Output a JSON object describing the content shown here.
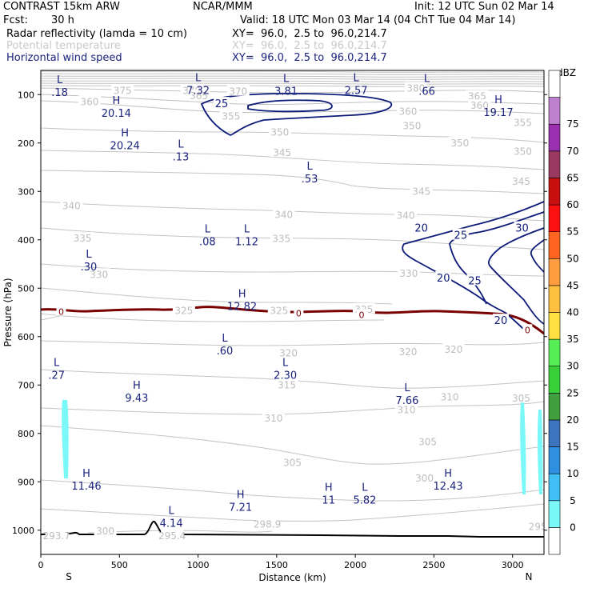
{
  "header": {
    "model": "CONTRAST 15km ARW",
    "org": "NCAR/MMM",
    "init": "Init: 12 UTC Sun 02 Mar 14",
    "fcst_label": "Fcst:",
    "fcst_value": "30 h",
    "valid": "Valid: 18 UTC Mon 03 Mar 14 (04 ChT Tue 04 Mar 14)",
    "fields": [
      {
        "name": "Radar reflectivity (lamda = 10 cm)",
        "xy": "XY=  96.0,  2.5 to  96.0,214.7",
        "color": "#000000"
      },
      {
        "name": "Potential temperature",
        "xy": "XY=  96.0,  2.5 to  96.0,214.7",
        "color": "#c8c8c8"
      },
      {
        "name": "Horizontal wind speed",
        "xy": "XY=  96.0,  2.5 to  96.0,214.7",
        "color": "#1a237e"
      }
    ]
  },
  "chart_data": {
    "type": "contour-cross-section",
    "xlabel": "Distance (km)",
    "ylabel": "Pressure (hPa)",
    "xlim": [
      0,
      3200
    ],
    "ylim": [
      1050,
      50
    ],
    "x_ticks": [
      0,
      500,
      1000,
      1500,
      2000,
      2500,
      3000
    ],
    "y_ticks": [
      100,
      200,
      300,
      400,
      500,
      600,
      700,
      800,
      900,
      1000
    ],
    "x_end_labels": {
      "left": "S",
      "right": "N"
    },
    "theta_labels": [
      {
        "t": "375",
        "x": 520,
        "p": 92
      },
      {
        "t": "370",
        "x": 960,
        "p": 92
      },
      {
        "t": "365",
        "x": 1005,
        "p": 103
      },
      {
        "t": "370",
        "x": 1255,
        "p": 94
      },
      {
        "t": "380",
        "x": 2385,
        "p": 87
      },
      {
        "t": "360",
        "x": 310,
        "p": 115
      },
      {
        "t": "365",
        "x": 2775,
        "p": 104
      },
      {
        "t": "360",
        "x": 2790,
        "p": 123
      },
      {
        "t": "355",
        "x": 1210,
        "p": 145
      },
      {
        "t": "360",
        "x": 2335,
        "p": 135
      },
      {
        "t": "355",
        "x": 3065,
        "p": 158
      },
      {
        "t": "350",
        "x": 1520,
        "p": 178
      },
      {
        "t": "350",
        "x": 2360,
        "p": 165
      },
      {
        "t": "350",
        "x": 2665,
        "p": 200
      },
      {
        "t": "350",
        "x": 3065,
        "p": 218
      },
      {
        "t": "345",
        "x": 1535,
        "p": 220
      },
      {
        "t": "345",
        "x": 3055,
        "p": 280
      },
      {
        "t": "345",
        "x": 2420,
        "p": 300
      },
      {
        "t": "340",
        "x": 195,
        "p": 330
      },
      {
        "t": "340",
        "x": 1545,
        "p": 348
      },
      {
        "t": "340",
        "x": 2320,
        "p": 350
      },
      {
        "t": "335",
        "x": 265,
        "p": 397
      },
      {
        "t": "335",
        "x": 1530,
        "p": 398
      },
      {
        "t": "330",
        "x": 370,
        "p": 472
      },
      {
        "t": "330",
        "x": 2340,
        "p": 470
      },
      {
        "t": "325",
        "x": 910,
        "p": 547
      },
      {
        "t": "325",
        "x": 1515,
        "p": 547
      },
      {
        "t": "325",
        "x": 2055,
        "p": 544
      },
      {
        "t": "320",
        "x": 1575,
        "p": 634
      },
      {
        "t": "320",
        "x": 2335,
        "p": 632
      },
      {
        "t": "320",
        "x": 2625,
        "p": 627
      },
      {
        "t": "315",
        "x": 1565,
        "p": 700
      },
      {
        "t": "310",
        "x": 1480,
        "p": 769
      },
      {
        "t": "310",
        "x": 2325,
        "p": 752
      },
      {
        "t": "310",
        "x": 2600,
        "p": 725
      },
      {
        "t": "305",
        "x": 2460,
        "p": 818
      },
      {
        "t": "305",
        "x": 1600,
        "p": 861
      },
      {
        "t": "305",
        "x": 3055,
        "p": 728
      },
      {
        "t": "300",
        "x": 410,
        "p": 1002
      },
      {
        "t": "300",
        "x": 2440,
        "p": 893
      },
      {
        "t": "298.9",
        "x": 1440,
        "p": 988
      },
      {
        "t": "295.4",
        "x": 835,
        "p": 1012
      },
      {
        "t": "293.7",
        "x": 100,
        "p": 1012
      },
      {
        "t": "295",
        "x": 3160,
        "p": 993
      }
    ],
    "wind_labels": [
      {
        "t": "25",
        "x": 1150,
        "p": 118
      },
      {
        "t": "20",
        "x": 2420,
        "p": 375
      },
      {
        "t": "25",
        "x": 2670,
        "p": 390
      },
      {
        "t": "30",
        "x": 3060,
        "p": 375
      },
      {
        "t": "20",
        "x": 2560,
        "p": 478
      },
      {
        "t": "25",
        "x": 2760,
        "p": 484
      },
      {
        "t": "20",
        "x": 2925,
        "p": 566
      }
    ],
    "freezing_level_labels": [
      {
        "t": "0",
        "x": 130,
        "p": 548
      },
      {
        "t": "0",
        "x": 1640,
        "p": 552
      },
      {
        "t": "0",
        "x": 2040,
        "p": 555
      },
      {
        "t": "0",
        "x": 3095,
        "p": 586
      }
    ],
    "hl_markers": [
      {
        "t": "L",
        "v": ".18",
        "x": 120,
        "p": 80,
        "c": "wind"
      },
      {
        "t": "L",
        "v": "7.32",
        "x": 1000,
        "p": 76,
        "c": "wind"
      },
      {
        "t": "L",
        "v": "3.81",
        "x": 1560,
        "p": 77,
        "c": "wind"
      },
      {
        "t": "L",
        "v": "2.57",
        "x": 2005,
        "p": 76,
        "c": "wind"
      },
      {
        "t": "L",
        "v": ".66",
        "x": 2455,
        "p": 77,
        "c": "wind"
      },
      {
        "t": "H",
        "v": "20.14",
        "x": 480,
        "p": 123,
        "c": "wind"
      },
      {
        "t": "H",
        "v": "19.17",
        "x": 2910,
        "p": 121,
        "c": "wind"
      },
      {
        "t": "H",
        "v": "20.24",
        "x": 535,
        "p": 190,
        "c": "wind"
      },
      {
        "t": "L",
        "v": ".13",
        "x": 890,
        "p": 213,
        "c": "wind"
      },
      {
        "t": "L",
        "v": ".53",
        "x": 1710,
        "p": 258,
        "c": "wind"
      },
      {
        "t": "L",
        "v": ".08",
        "x": 1060,
        "p": 388,
        "c": "wind"
      },
      {
        "t": "L",
        "v": "1.12",
        "x": 1310,
        "p": 388,
        "c": "wind"
      },
      {
        "t": "L",
        "v": ".30",
        "x": 305,
        "p": 440,
        "c": "wind"
      },
      {
        "t": "H",
        "v": "12.82",
        "x": 1280,
        "p": 522,
        "c": "wind"
      },
      {
        "t": "L",
        "v": ".60",
        "x": 1170,
        "p": 614,
        "c": "wind"
      },
      {
        "t": "L",
        "v": ".27",
        "x": 100,
        "p": 664,
        "c": "wind"
      },
      {
        "t": "L",
        "v": "2.30",
        "x": 1555,
        "p": 664,
        "c": "wind"
      },
      {
        "t": "H",
        "v": "9.43",
        "x": 610,
        "p": 711,
        "c": "wind"
      },
      {
        "t": "L",
        "v": "7.66",
        "x": 2330,
        "p": 716,
        "c": "wind"
      },
      {
        "t": "H",
        "v": "11.46",
        "x": 290,
        "p": 893,
        "c": "wind"
      },
      {
        "t": "H",
        "v": "11",
        "x": 1830,
        "p": 922,
        "c": "wind"
      },
      {
        "t": "L",
        "v": "5.82",
        "x": 2060,
        "p": 922,
        "c": "wind"
      },
      {
        "t": "H",
        "v": "12.43",
        "x": 2590,
        "p": 893,
        "c": "wind"
      },
      {
        "t": "L",
        "v": "4.14",
        "x": 830,
        "p": 970,
        "c": "wind"
      },
      {
        "t": "H",
        "v": "7.21",
        "x": 1270,
        "p": 937,
        "c": "wind"
      }
    ],
    "colorbar": {
      "title": "dBZ",
      "levels": [
        "0",
        "5",
        "10",
        "15",
        "20",
        "25",
        "30",
        "35",
        "40",
        "45",
        "50",
        "55",
        "60",
        "65",
        "70",
        "75"
      ],
      "colors": [
        "#ffffff",
        "#7af7f7",
        "#40bff5",
        "#2f8fe0",
        "#3d74bd",
        "#40a040",
        "#38d038",
        "#55ee55",
        "#ffe040",
        "#ffc040",
        "#ff9d40",
        "#ff6520",
        "#ff1010",
        "#c81010",
        "#9a3a60",
        "#9a30b0",
        "#c080d0",
        "#ffffff"
      ]
    }
  }
}
